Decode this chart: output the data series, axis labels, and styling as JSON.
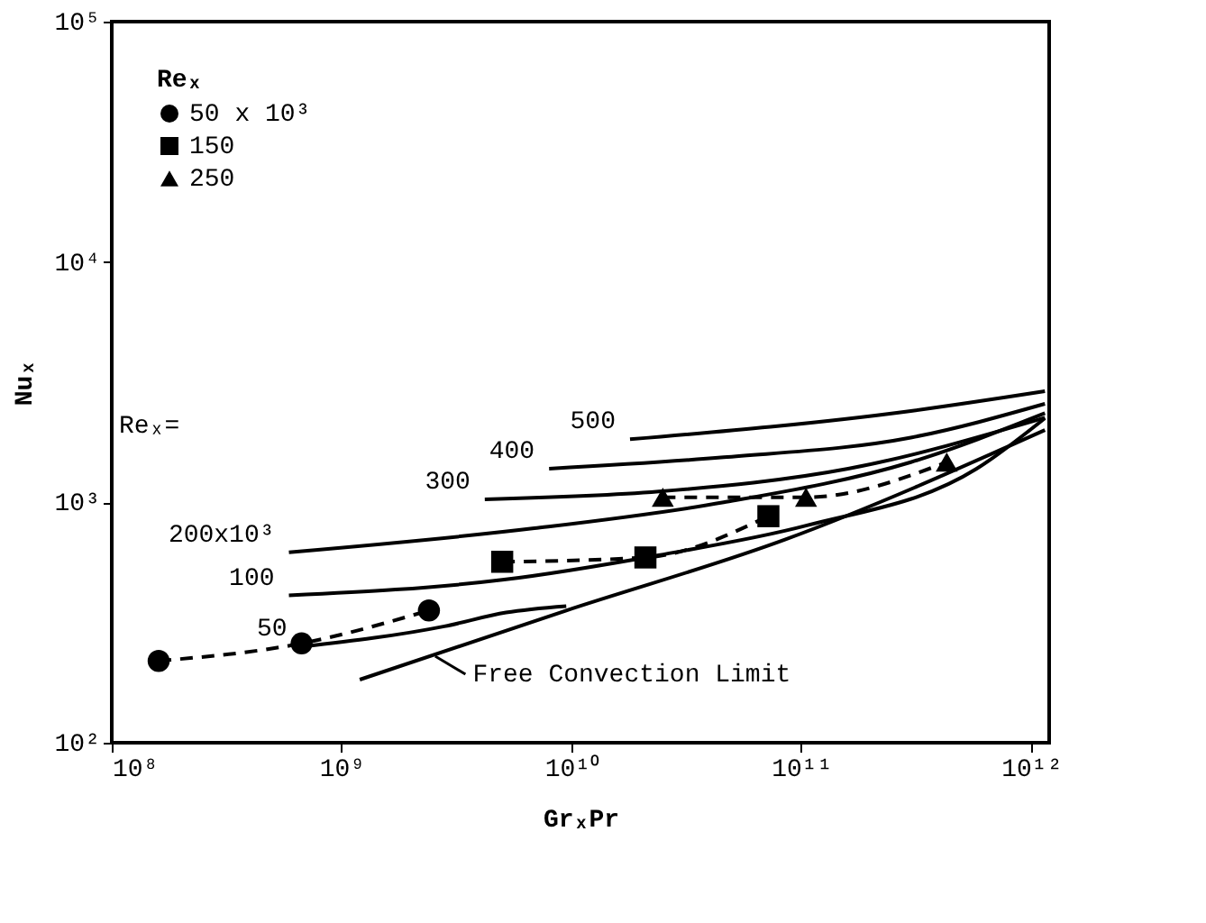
{
  "chart_data": {
    "type": "line",
    "xlabel": "GrₓPr",
    "ylabel": "Nuₓ",
    "legend_title": "Reₓ",
    "legend": "top left",
    "log": "xy",
    "grid": false,
    "xlim": [
      100000000.0,
      1200000000000.0
    ],
    "xticks": [
      {
        "value": 100000000.0,
        "label": "10⁸"
      },
      {
        "value": 1000000000.0,
        "label": "10⁹"
      },
      {
        "value": 10000000000.0,
        "label": "10¹⁰"
      },
      {
        "value": 100000000000.0,
        "label": "10¹¹"
      },
      {
        "value": 1000000000000.0,
        "label": "10¹²"
      }
    ],
    "ylim": [
      100,
      100000
    ],
    "yticks": [
      {
        "value": 100,
        "label": "10²"
      },
      {
        "value": 1000,
        "label": "10³"
      },
      {
        "value": 10000,
        "label": "10⁴"
      },
      {
        "value": 100000,
        "label": "10⁵"
      }
    ],
    "series": [
      {
        "name": "50 x 10³",
        "color": "#000000",
        "marker": "circle",
        "line_style": "dashed",
        "x": [
          160000000.0,
          670000000.0,
          2400000000.0
        ],
        "values": [
          219,
          259,
          355
        ]
      },
      {
        "name": "150",
        "color": "#000000",
        "marker": "square",
        "line_style": "dashed",
        "x": [
          5000000000.0,
          21000000000.0,
          72000000000.0
        ],
        "values": [
          566,
          590,
          876
        ]
      },
      {
        "name": "250",
        "color": "#000000",
        "marker": "triangle",
        "line_style": "dashed",
        "x": [
          25000000000.0,
          105000000000.0,
          430000000000.0
        ],
        "values": [
          1050,
          1050,
          1470
        ]
      },
      {
        "name": "50",
        "color": "#000000",
        "marker": "none",
        "line_style": "solid",
        "x": [
          670000000.0,
          2800000000.0,
          5200000000.0,
          9500000000.0
        ],
        "values": [
          251,
          305,
          348,
          370
        ]
      },
      {
        "name": "100",
        "color": "#000000",
        "marker": "none",
        "line_style": "solid",
        "x": [
          590000000.0,
          5000000000.0,
          24000000000.0,
          105000000000.0,
          580000000000.0,
          1150000000000.0
        ],
        "values": [
          410,
          476,
          603,
          800,
          1380,
          2240
        ]
      },
      {
        "name": "200x10³",
        "color": "#000000",
        "marker": "none",
        "line_style": "solid",
        "x": [
          590000000.0,
          6900000000.0,
          46000000000.0,
          300000000000.0,
          1150000000000.0
        ],
        "values": [
          620,
          780,
          1000,
          1470,
          2350
        ]
      },
      {
        "name": "300",
        "color": "#000000",
        "marker": "none",
        "line_style": "solid",
        "x": [
          4200000000.0,
          24000000000.0,
          160000000000.0,
          1150000000000.0
        ],
        "values": [
          1030,
          1110,
          1380,
          2250
        ]
      },
      {
        "name": "400",
        "color": "#000000",
        "marker": "none",
        "line_style": "solid",
        "x": [
          8000000000.0,
          46000000000.0,
          300000000000.0,
          1150000000000.0
        ],
        "values": [
          1380,
          1540,
          1860,
          2570
        ]
      },
      {
        "name": "500",
        "color": "#000000",
        "marker": "none",
        "line_style": "solid",
        "x": [
          18000000000.0,
          300000000000.0,
          1150000000000.0
        ],
        "values": [
          1830,
          2400,
          2900
        ]
      },
      {
        "color": "#000000",
        "marker": "none",
        "line_style": "solid",
        "x": [
          1200000000.0,
          9500000000.0,
          85000000000.0,
          1150000000000.0
        ],
        "values": [
          183,
          355,
          700,
          2000
        ]
      }
    ],
    "annotations": [
      "Reₓ=",
      "Free Convection Limit"
    ]
  }
}
